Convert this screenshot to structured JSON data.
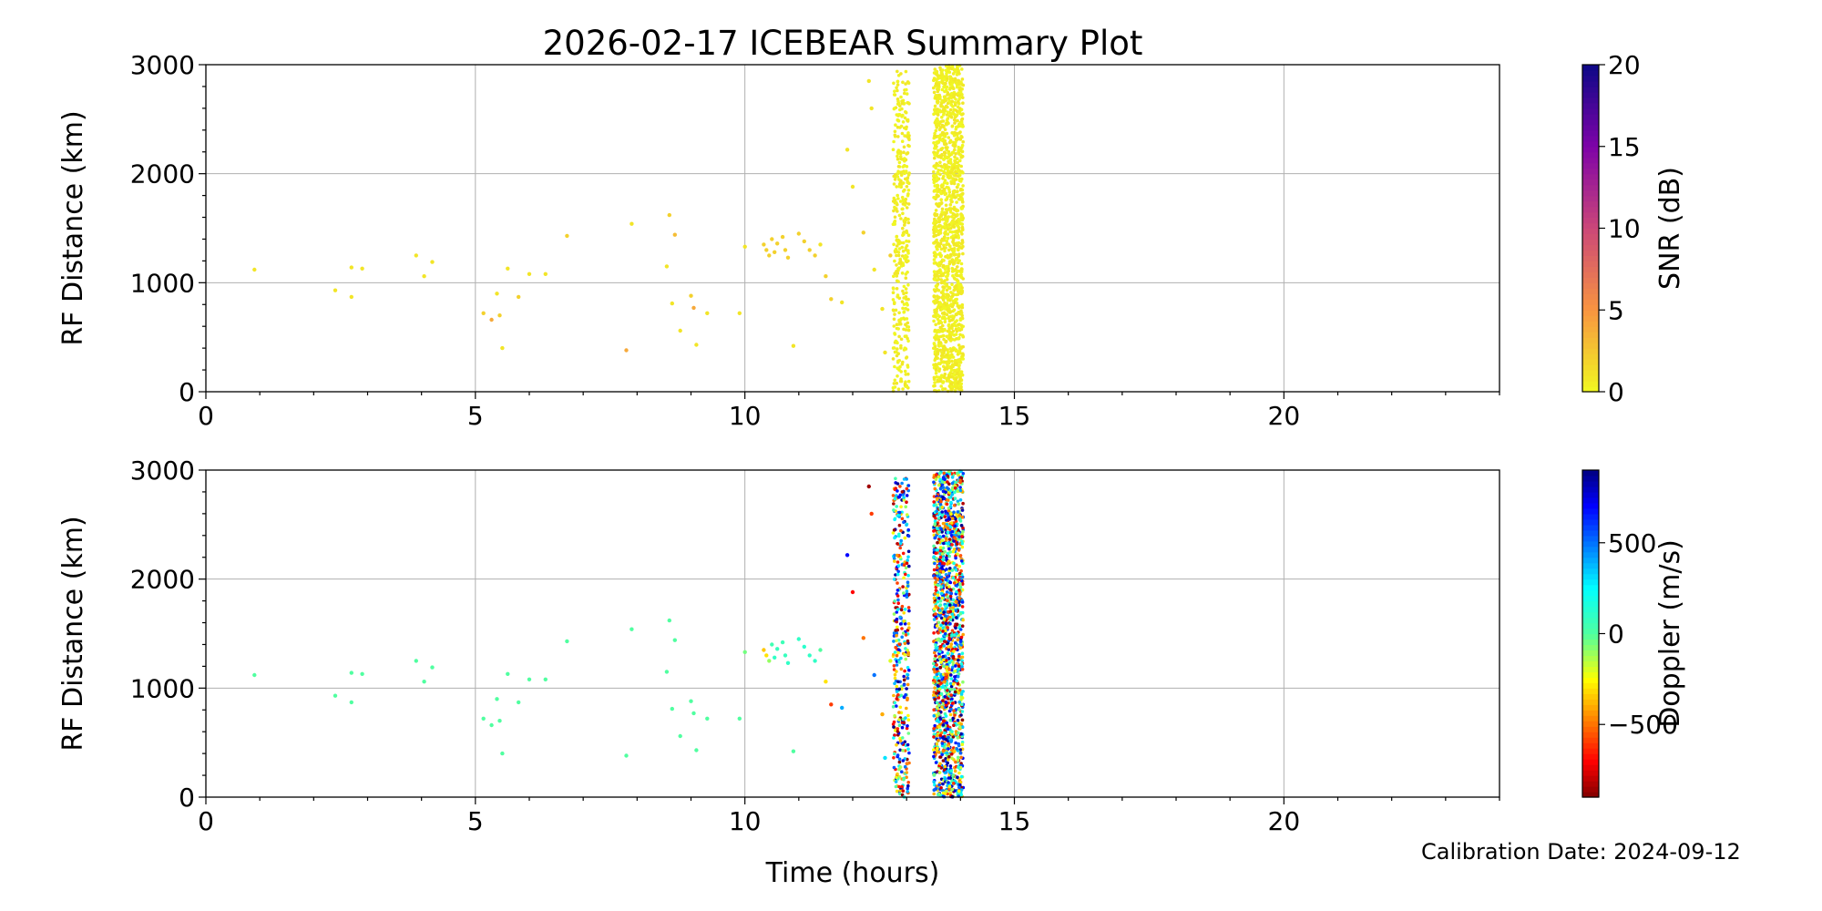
{
  "title": "2026-02-17 ICEBEAR Summary Plot",
  "calibration": "Calibration Date: 2024-09-12",
  "chart_data": [
    {
      "type": "scatter",
      "xlabel": "",
      "ylabel": "RF Distance (km)",
      "xlim": [
        0,
        24
      ],
      "ylim": [
        0,
        3000
      ],
      "xticks": [
        0,
        5,
        10,
        15,
        20
      ],
      "yticks": [
        0,
        1000,
        2000,
        3000
      ],
      "grid": true,
      "color_by": "snr",
      "colorbar": {
        "label": "SNR (dB)",
        "range": [
          0,
          20
        ],
        "ticks": [
          0,
          5,
          10,
          15,
          20
        ],
        "colormap": "plasma_r"
      },
      "scatter_points": [
        [
          0.9,
          1120,
          1
        ],
        [
          2.4,
          930,
          1
        ],
        [
          2.7,
          870,
          1
        ],
        [
          2.7,
          1140,
          1
        ],
        [
          2.9,
          1130,
          1
        ],
        [
          3.9,
          1250,
          1
        ],
        [
          4.05,
          1060,
          1
        ],
        [
          4.2,
          1190,
          1
        ],
        [
          5.15,
          720,
          2
        ],
        [
          5.3,
          660,
          4
        ],
        [
          5.4,
          900,
          1
        ],
        [
          5.45,
          700,
          2
        ],
        [
          5.5,
          400,
          1
        ],
        [
          5.6,
          1130,
          1
        ],
        [
          5.8,
          870,
          2
        ],
        [
          6.0,
          1080,
          1
        ],
        [
          6.3,
          1080,
          1
        ],
        [
          6.7,
          1430,
          2
        ],
        [
          7.8,
          380,
          4
        ],
        [
          7.9,
          1540,
          1
        ],
        [
          8.55,
          1150,
          1
        ],
        [
          8.6,
          1620,
          2
        ],
        [
          8.65,
          810,
          1
        ],
        [
          8.7,
          1440,
          3
        ],
        [
          8.8,
          560,
          1
        ],
        [
          9.0,
          880,
          2
        ],
        [
          9.05,
          770,
          4
        ],
        [
          9.1,
          430,
          1
        ],
        [
          9.3,
          720,
          1
        ],
        [
          9.9,
          720,
          1
        ],
        [
          10.0,
          1330,
          1
        ],
        [
          10.35,
          1350,
          2
        ],
        [
          10.4,
          1300,
          2
        ],
        [
          10.45,
          1250,
          2
        ],
        [
          10.5,
          1400,
          2
        ],
        [
          10.55,
          1280,
          2
        ],
        [
          10.6,
          1360,
          2
        ],
        [
          10.7,
          1420,
          2
        ],
        [
          10.75,
          1300,
          2
        ],
        [
          10.8,
          1230,
          2
        ],
        [
          10.9,
          420,
          1
        ],
        [
          11.0,
          1450,
          2
        ],
        [
          11.1,
          1380,
          2
        ],
        [
          11.2,
          1300,
          2
        ],
        [
          11.3,
          1250,
          2
        ],
        [
          11.4,
          1350,
          1
        ],
        [
          11.5,
          1060,
          2
        ],
        [
          11.6,
          850,
          2
        ],
        [
          11.8,
          820,
          1
        ],
        [
          11.9,
          2220,
          1
        ],
        [
          12.0,
          1880,
          1
        ],
        [
          12.2,
          1460,
          2
        ],
        [
          12.3,
          2850,
          1
        ],
        [
          12.35,
          2600,
          1
        ],
        [
          12.4,
          1120,
          1
        ],
        [
          12.55,
          760,
          1
        ],
        [
          12.6,
          360,
          1
        ],
        [
          12.7,
          1250,
          2
        ]
      ],
      "dense_bands": [
        {
          "x_range": [
            12.75,
            13.05
          ],
          "y_range": [
            0,
            2950
          ],
          "value_range": [
            0,
            1
          ],
          "count": 380
        },
        {
          "x_range": [
            13.5,
            14.05
          ],
          "y_range": [
            0,
            3000
          ],
          "value_range": [
            0,
            1
          ],
          "count": 1500
        }
      ]
    },
    {
      "type": "scatter",
      "xlabel": "Time (hours)",
      "ylabel": "RF Distance (km)",
      "xlim": [
        0,
        24
      ],
      "ylim": [
        0,
        3000
      ],
      "xticks": [
        0,
        5,
        10,
        15,
        20
      ],
      "yticks": [
        0,
        1000,
        2000,
        3000
      ],
      "grid": true,
      "color_by": "doppler",
      "colorbar": {
        "label": "Doppler (m/s)",
        "range": [
          -900,
          900
        ],
        "ticks": [
          -500,
          0,
          500
        ],
        "colormap": "jet_r"
      },
      "scatter_points": [
        [
          0.9,
          1120,
          0
        ],
        [
          2.4,
          930,
          0
        ],
        [
          2.7,
          870,
          0
        ],
        [
          2.7,
          1140,
          0
        ],
        [
          2.9,
          1130,
          0
        ],
        [
          3.9,
          1250,
          0
        ],
        [
          4.05,
          1060,
          0
        ],
        [
          4.2,
          1190,
          0
        ],
        [
          5.15,
          720,
          0
        ],
        [
          5.3,
          660,
          0
        ],
        [
          5.4,
          900,
          0
        ],
        [
          5.45,
          700,
          0
        ],
        [
          5.5,
          400,
          0
        ],
        [
          5.6,
          1130,
          0
        ],
        [
          5.8,
          870,
          0
        ],
        [
          6.0,
          1080,
          0
        ],
        [
          6.3,
          1080,
          0
        ],
        [
          6.7,
          1430,
          0
        ],
        [
          7.8,
          380,
          0
        ],
        [
          7.9,
          1540,
          0
        ],
        [
          8.55,
          1150,
          0
        ],
        [
          8.6,
          1620,
          0
        ],
        [
          8.65,
          810,
          0
        ],
        [
          8.7,
          1440,
          0
        ],
        [
          8.8,
          560,
          0
        ],
        [
          9.0,
          880,
          0
        ],
        [
          9.05,
          770,
          0
        ],
        [
          9.1,
          430,
          0
        ],
        [
          9.3,
          720,
          0
        ],
        [
          9.9,
          720,
          0
        ],
        [
          10.0,
          1330,
          -50
        ],
        [
          10.35,
          1350,
          -350
        ],
        [
          10.4,
          1300,
          -300
        ],
        [
          10.45,
          1250,
          -100
        ],
        [
          10.5,
          1400,
          50
        ],
        [
          10.55,
          1280,
          100
        ],
        [
          10.6,
          1360,
          80
        ],
        [
          10.7,
          1420,
          60
        ],
        [
          10.75,
          1300,
          80
        ],
        [
          10.8,
          1230,
          100
        ],
        [
          10.9,
          420,
          0
        ],
        [
          11.0,
          1450,
          100
        ],
        [
          11.1,
          1380,
          120
        ],
        [
          11.2,
          1300,
          100
        ],
        [
          11.3,
          1250,
          100
        ],
        [
          11.4,
          1350,
          0
        ],
        [
          11.5,
          1060,
          -300
        ],
        [
          11.6,
          850,
          -600
        ],
        [
          11.8,
          820,
          400
        ],
        [
          11.9,
          2220,
          700
        ],
        [
          12.0,
          1880,
          -700
        ],
        [
          12.2,
          1460,
          -500
        ],
        [
          12.3,
          2850,
          -850
        ],
        [
          12.35,
          2600,
          -600
        ],
        [
          12.4,
          1120,
          500
        ],
        [
          12.55,
          760,
          -400
        ],
        [
          12.6,
          360,
          300
        ],
        [
          12.7,
          1250,
          -200
        ]
      ],
      "dense_bands": [
        {
          "x_range": [
            12.75,
            13.05
          ],
          "y_range": [
            0,
            2950
          ],
          "value_range": [
            -900,
            900
          ],
          "count": 380
        },
        {
          "x_range": [
            13.5,
            14.05
          ],
          "y_range": [
            0,
            3000
          ],
          "value_range": [
            -900,
            900
          ],
          "count": 1500
        }
      ]
    }
  ]
}
